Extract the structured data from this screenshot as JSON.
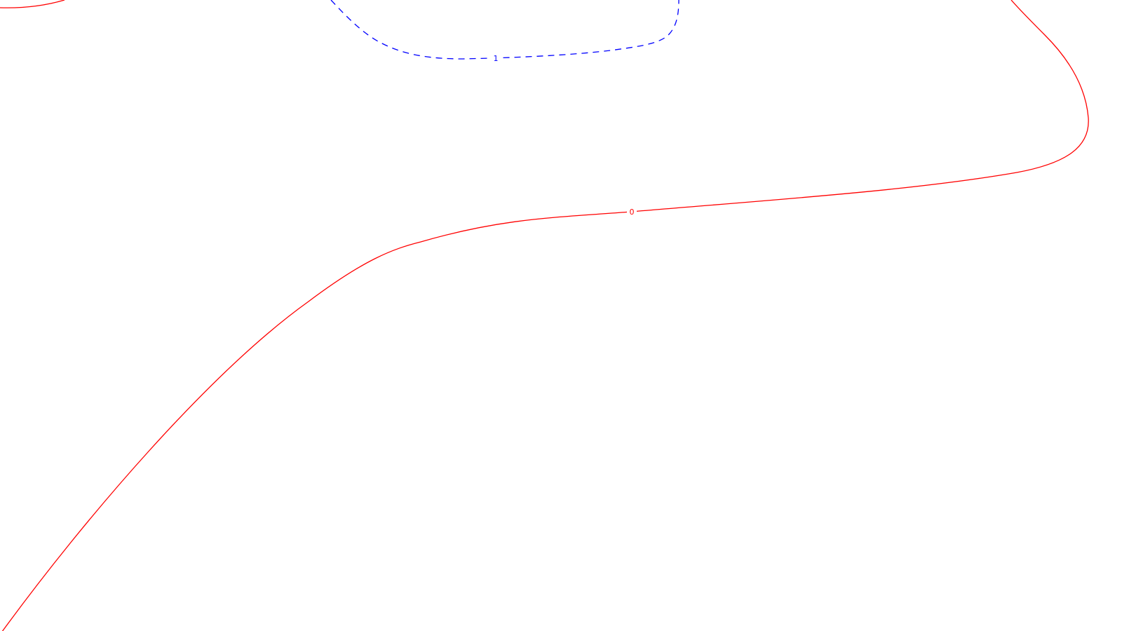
{
  "chart_data": {
    "type": "contour",
    "title": "",
    "xlabel": "",
    "ylabel": "",
    "grid": false,
    "legend": "none",
    "levels": [
      {
        "level": 1,
        "label": "1",
        "color": "#0000ff",
        "style": "dashed"
      },
      {
        "level": 0,
        "label": "0",
        "color": "#ff0000",
        "style": "solid"
      }
    ]
  }
}
